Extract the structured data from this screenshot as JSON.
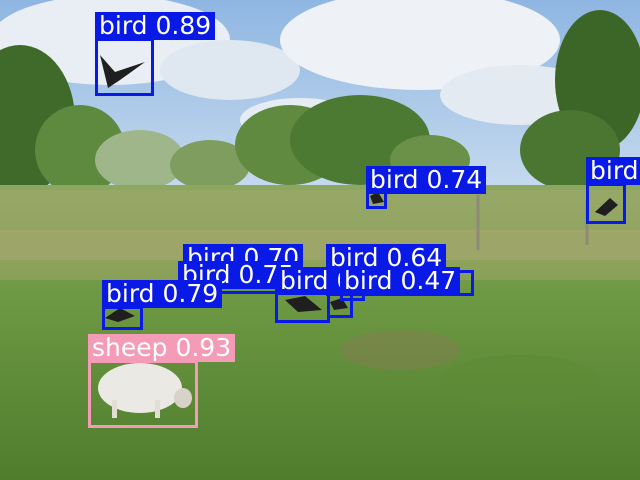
{
  "colors": {
    "bird_box": "#0a1ae6",
    "sheep_box": "#f49cb7",
    "label_text": "#ffffff"
  },
  "detections": [
    {
      "label": "bird 0.89",
      "class": "bird",
      "color": "#0a1ae6"
    },
    {
      "label": "bird 0.74",
      "class": "bird",
      "color": "#0a1ae6"
    },
    {
      "label": "bird",
      "class": "bird",
      "color": "#0a1ae6"
    },
    {
      "label": "bird 0.70",
      "class": "bird",
      "color": "#0a1ae6"
    },
    {
      "label": "bird 0.64",
      "class": "bird",
      "color": "#0a1ae6"
    },
    {
      "label": "bird 0.75",
      "class": "bird",
      "color": "#0a1ae6"
    },
    {
      "label": "bird 0.74",
      "class": "bird",
      "color": "#0a1ae6"
    },
    {
      "label": "bird 0.47",
      "class": "bird",
      "color": "#0a1ae6"
    },
    {
      "label": "bird 0.79",
      "class": "bird",
      "color": "#0a1ae6"
    },
    {
      "label": "sheep 0.93",
      "class": "sheep",
      "color": "#f49cb7"
    }
  ]
}
